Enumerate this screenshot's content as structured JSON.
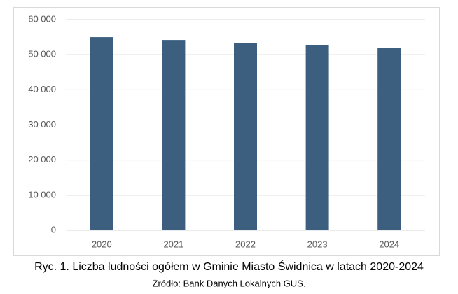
{
  "chart_data": {
    "type": "bar",
    "title": "Ryc. 1. Liczba ludności ogółem w Gminie Miasto Świdnica w latach 2020-2024",
    "source": "Źródło: Bank Danych Lokalnych GUS.",
    "categories": [
      "2020",
      "2021",
      "2022",
      "2023",
      "2024"
    ],
    "values": [
      55000,
      54200,
      53400,
      52800,
      52000
    ],
    "color": "#3d5f7f",
    "ylim": [
      0,
      60000
    ],
    "yticks": [
      0,
      {
        "value": 10000,
        "label": "10 000"
      },
      {
        "value": 20000,
        "label": "20 000"
      },
      {
        "value": 30000,
        "label": "30 000"
      },
      {
        "value": 40000,
        "label": "40 000"
      },
      {
        "value": 50000,
        "label": "50 000"
      },
      {
        "value": 60000,
        "label": "60 000"
      }
    ],
    "grid": true
  }
}
